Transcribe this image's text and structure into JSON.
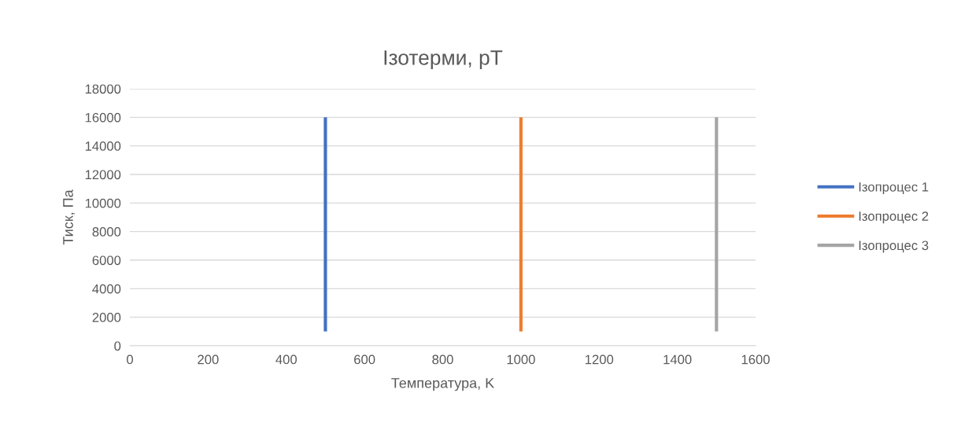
{
  "chart_data": {
    "type": "line",
    "title": "Ізотерми, pT",
    "xlabel": "Температура, K",
    "ylabel": "Тиск, Па",
    "xlim": [
      0,
      1600
    ],
    "xticks": [
      0,
      200,
      400,
      600,
      800,
      1000,
      1200,
      1400,
      1600
    ],
    "ylim": [
      0,
      18000
    ],
    "yticks": [
      0,
      2000,
      4000,
      6000,
      8000,
      10000,
      12000,
      14000,
      16000,
      18000
    ],
    "grid": "y",
    "legend": "right",
    "marker": "none",
    "line_style": "solid",
    "series": [
      {
        "name": "Ізопроцес 1",
        "color": "#4472c4",
        "x": [
          500,
          500
        ],
        "values": [
          1000,
          16000
        ]
      },
      {
        "name": "Ізопроцес 2",
        "color": "#ed7d31",
        "x": [
          1000,
          1000
        ],
        "values": [
          1000,
          16000
        ]
      },
      {
        "name": "Ізопроцес 3",
        "color": "#a5a5a5",
        "x": [
          1500,
          1500
        ],
        "values": [
          1000,
          16000
        ]
      }
    ]
  }
}
